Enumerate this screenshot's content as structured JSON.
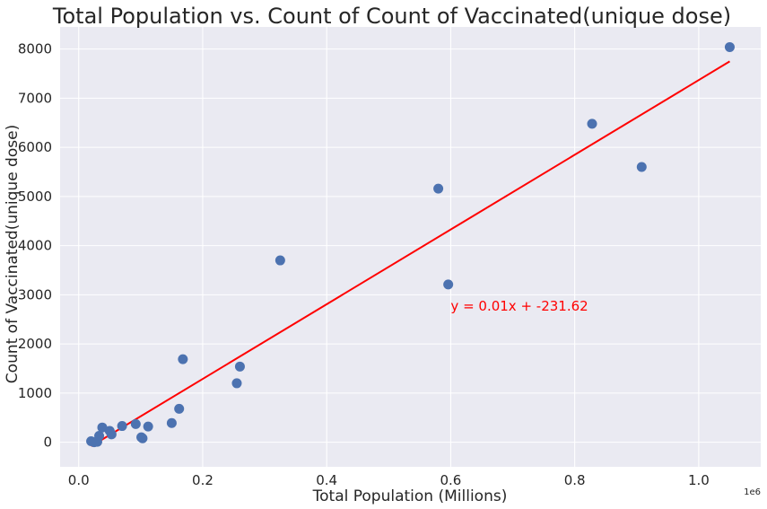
{
  "chart_data": {
    "type": "scatter",
    "title": "Total Population vs. Count of Count of Vaccinated(unique dose)",
    "xlabel": "Total Population (Millions)",
    "ylabel": "Count of Vaccinated(unique dose)",
    "x_offset_label": "1e6",
    "xlim": [
      -30000,
      1100000
    ],
    "ylim": [
      -500,
      8450
    ],
    "x_ticks": [
      0,
      200000,
      400000,
      600000,
      800000,
      1000000
    ],
    "x_tick_labels": [
      "0.0",
      "0.2",
      "0.4",
      "0.6",
      "0.8",
      "1.0"
    ],
    "y_ticks": [
      0,
      1000,
      2000,
      3000,
      4000,
      5000,
      6000,
      7000,
      8000
    ],
    "y_tick_labels": [
      "0",
      "1000",
      "2000",
      "3000",
      "4000",
      "5000",
      "6000",
      "7000",
      "8000"
    ],
    "grid": true,
    "background_color": "#eaeaf2",
    "point_color": "#4c72b0",
    "line_color": "#ff0000",
    "points": [
      {
        "x": 20000,
        "y": 20
      },
      {
        "x": 25000,
        "y": 0
      },
      {
        "x": 30000,
        "y": 10
      },
      {
        "x": 33000,
        "y": 130
      },
      {
        "x": 38000,
        "y": 300
      },
      {
        "x": 50000,
        "y": 230
      },
      {
        "x": 53000,
        "y": 160
      },
      {
        "x": 70000,
        "y": 330
      },
      {
        "x": 92000,
        "y": 370
      },
      {
        "x": 101000,
        "y": 100
      },
      {
        "x": 103000,
        "y": 80
      },
      {
        "x": 112000,
        "y": 320
      },
      {
        "x": 150000,
        "y": 390
      },
      {
        "x": 162000,
        "y": 680
      },
      {
        "x": 168000,
        "y": 1690
      },
      {
        "x": 255000,
        "y": 1200
      },
      {
        "x": 260000,
        "y": 1540
      },
      {
        "x": 325000,
        "y": 3700
      },
      {
        "x": 580000,
        "y": 5160
      },
      {
        "x": 596000,
        "y": 3210
      },
      {
        "x": 828000,
        "y": 6480
      },
      {
        "x": 908000,
        "y": 5600
      },
      {
        "x": 1050000,
        "y": 8040
      }
    ],
    "trendline": {
      "slope": 0.0076,
      "intercept": -231.62,
      "x_range": [
        20000,
        1050000
      ],
      "label": "y = 0.01x + -231.62",
      "label_x": 600000,
      "label_y": 2680
    }
  }
}
